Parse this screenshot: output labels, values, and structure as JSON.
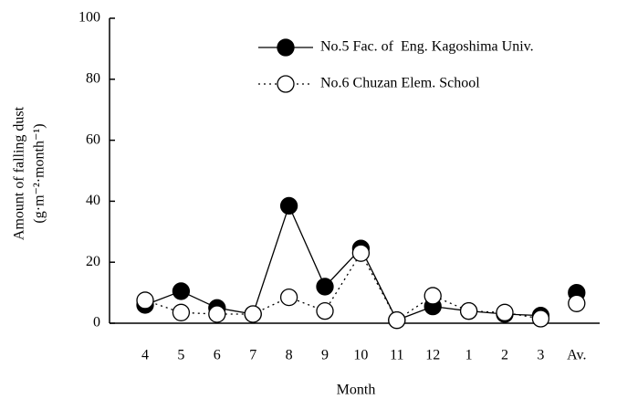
{
  "chart_data": {
    "type": "line",
    "y_label": [
      "Amount of falling dust",
      "(g·m⁻²·month⁻¹)"
    ],
    "x_label": "Month",
    "categories": [
      "4",
      "5",
      "6",
      "7",
      "8",
      "9",
      "10",
      "11",
      "12",
      "1",
      "2",
      "3",
      "Av."
    ],
    "series": [
      {
        "name": "No.5 Fac. of  Eng. Kagoshima Univ.",
        "color": "#000000",
        "marker": "filled",
        "dash": "solid",
        "values": [
          6,
          10.5,
          5,
          3,
          38.5,
          12,
          24.5,
          1,
          5.5,
          4,
          3,
          2.5,
          10
        ]
      },
      {
        "name": "No.6 Chuzan Elem. School",
        "color": "#000000",
        "marker": "open",
        "dash": "dotted",
        "values": [
          7.5,
          3.5,
          3,
          3,
          8.5,
          4,
          23,
          1,
          9,
          4,
          3.5,
          1.5,
          6.5
        ]
      }
    ],
    "ylim": [
      0,
      100
    ],
    "yticks": [
      0,
      20,
      40,
      60,
      80,
      100
    ],
    "legend": "top-right",
    "grid": false
  }
}
